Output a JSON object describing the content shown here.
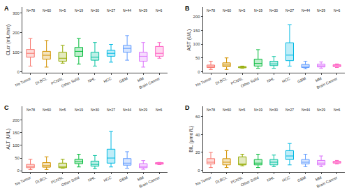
{
  "chart_data": [
    {
      "type": "box",
      "title": "A",
      "y_label": "CLcr (mL/min)",
      "categories": [
        "No Tumor",
        "DLBCL",
        "PCNSL",
        "Other Solid",
        "NHL",
        "HCC",
        "GBM",
        "MM",
        "Brain Cancer"
      ],
      "colors": [
        "#F8766D",
        "#D39200",
        "#93AA00",
        "#00BA38",
        "#00C19F",
        "#00B9E3",
        "#619CFF",
        "#DB72FB",
        "#FF61C3"
      ],
      "annotations": [
        "N=78",
        "N=60",
        "N=5",
        "N=19",
        "N=30",
        "N=27",
        "N=44",
        "N=29",
        "N=6"
      ],
      "q1": [
        75,
        65,
        55,
        80,
        60,
        80,
        100,
        55,
        80
      ],
      "median": [
        95,
        85,
        70,
        105,
        75,
        95,
        120,
        80,
        95
      ],
      "q3": [
        115,
        105,
        100,
        125,
        100,
        110,
        135,
        100,
        130
      ],
      "lowerfence": [
        30,
        25,
        45,
        40,
        30,
        50,
        60,
        25,
        70
      ],
      "upperfence": [
        170,
        160,
        135,
        170,
        150,
        140,
        185,
        150,
        150
      ],
      "ylim": [
        -5,
        330
      ],
      "yticks": [
        0,
        100,
        200,
        300
      ],
      "grid": false
    },
    {
      "type": "box",
      "title": "B",
      "y_label": "AST (U/L)",
      "categories": [
        "No Tumor",
        "DLBCL",
        "PCNSL",
        "Other Solid",
        "NHL",
        "HCC",
        "GBM",
        "MM",
        "Brain Cancer"
      ],
      "colors": [
        "#F8766D",
        "#D39200",
        "#93AA00",
        "#00BA38",
        "#00C19F",
        "#00B9E3",
        "#619CFF",
        "#DB72FB",
        "#FF61C3"
      ],
      "annotations": [
        "N=78",
        "N=60",
        "N=5",
        "N=19",
        "N=30",
        "N=27",
        "N=44",
        "N=29",
        "N=6"
      ],
      "q1": [
        15,
        18,
        14,
        20,
        22,
        40,
        15,
        17,
        18
      ],
      "median": [
        19,
        24,
        16,
        30,
        28,
        60,
        20,
        21,
        22
      ],
      "q3": [
        24,
        32,
        18,
        45,
        38,
        105,
        26,
        27,
        25
      ],
      "lowerfence": [
        8,
        8,
        12,
        12,
        12,
        20,
        10,
        12,
        15
      ],
      "upperfence": [
        38,
        50,
        20,
        80,
        55,
        170,
        38,
        35,
        28
      ],
      "ylim": [
        -5,
        235
      ],
      "yticks": [
        0,
        50,
        100,
        150,
        200
      ],
      "grid": false
    },
    {
      "type": "box",
      "title": "C",
      "y_label": "ALT (U/L)",
      "categories": [
        "No Tumor",
        "DLBCL",
        "PCNSL",
        "Other Solid",
        "NHL",
        "HCC",
        "GBM",
        "MM",
        "Brain Cancer"
      ],
      "colors": [
        "#F8766D",
        "#D39200",
        "#93AA00",
        "#00BA38",
        "#00C19F",
        "#00B9E3",
        "#619CFF",
        "#DB72FB",
        "#FF61C3"
      ],
      "annotations": [
        "N=78",
        "N=60",
        "N=5",
        "N=19",
        "N=30",
        "N=27",
        "N=44",
        "N=29",
        "N=6"
      ],
      "q1": [
        12,
        14,
        12,
        28,
        18,
        30,
        22,
        12,
        26
      ],
      "median": [
        17,
        20,
        15,
        35,
        25,
        50,
        30,
        17,
        30
      ],
      "q3": [
        25,
        32,
        30,
        45,
        38,
        85,
        48,
        28,
        32
      ],
      "lowerfence": [
        5,
        5,
        10,
        15,
        8,
        15,
        10,
        6,
        24
      ],
      "upperfence": [
        45,
        55,
        45,
        65,
        60,
        155,
        75,
        40,
        33
      ],
      "ylim": [
        -5,
        255
      ],
      "yticks": [
        0,
        50,
        100,
        150,
        200
      ],
      "grid": false
    },
    {
      "type": "box",
      "title": "D",
      "y_label": "BIL (μmol/L)",
      "categories": [
        "No Tumor",
        "DLBCL",
        "PCNSL",
        "Other Solid",
        "NHL",
        "HCC",
        "GBM",
        "MM",
        "Brain Cancer"
      ],
      "colors": [
        "#F8766D",
        "#D39200",
        "#93AA00",
        "#00BA38",
        "#00C19F",
        "#00B9E3",
        "#619CFF",
        "#DB72FB",
        "#FF61C3"
      ],
      "annotations": [
        "N=78",
        "N=60",
        "N=5",
        "N=19",
        "N=30",
        "N=27",
        "N=44",
        "N=29",
        "N=6"
      ],
      "q1": [
        7,
        6,
        6,
        6,
        6,
        12,
        7,
        6,
        8
      ],
      "median": [
        9,
        9,
        7,
        8,
        9,
        16,
        9,
        8,
        9
      ],
      "q3": [
        13,
        13,
        15,
        12,
        12,
        22,
        12,
        11,
        10
      ],
      "lowerfence": [
        3,
        3,
        5,
        3,
        4,
        6,
        4,
        4,
        7
      ],
      "upperfence": [
        20,
        22,
        18,
        18,
        17,
        30,
        18,
        16,
        11
      ],
      "ylim": [
        -2,
        72
      ],
      "yticks": [
        0,
        20,
        40,
        60
      ],
      "grid": false
    }
  ]
}
